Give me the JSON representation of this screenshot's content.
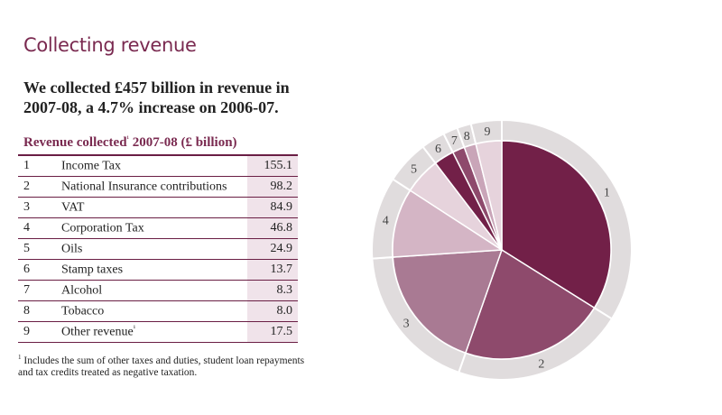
{
  "title": "Collecting revenue",
  "lead": "We collected £457 billion in revenue in 2007-08, a 4.7% increase on 2006-07.",
  "table_header": {
    "prefix": "Revenue collected",
    "marker": "¹",
    "suffix": " 2007-08 (£ billion)"
  },
  "footnote": {
    "marker": "1",
    "text": " Includes the sum of other taxes and duties, student loan repayments and tax credits treated as negative taxation."
  },
  "colors": {
    "accent": "#7a2a50",
    "ring": "#e0dcdd"
  },
  "chart_data": {
    "type": "pie",
    "start": "12 o'clock, clockwise",
    "categories": [
      "1",
      "2",
      "3",
      "4",
      "5",
      "6",
      "7",
      "8",
      "9"
    ],
    "labels": [
      "Income Tax",
      "National Insurance contributions",
      "VAT",
      "Corporation Tax",
      "Oils",
      "Stamp taxes",
      "Alcohol",
      "Tobacco",
      "Other revenue"
    ],
    "label_markers": [
      "",
      "",
      "",
      "",
      "",
      "",
      "",
      "",
      "¹"
    ],
    "values": [
      155.1,
      98.2,
      84.9,
      46.8,
      24.9,
      13.7,
      8.3,
      8.0,
      17.5
    ],
    "colors": [
      "#722048",
      "#8e4a6c",
      "#a97a93",
      "#d4b5c5",
      "#e6d3dc",
      "#722048",
      "#8e4a6c",
      "#c9a5b8",
      "#e6d3dc"
    ]
  }
}
